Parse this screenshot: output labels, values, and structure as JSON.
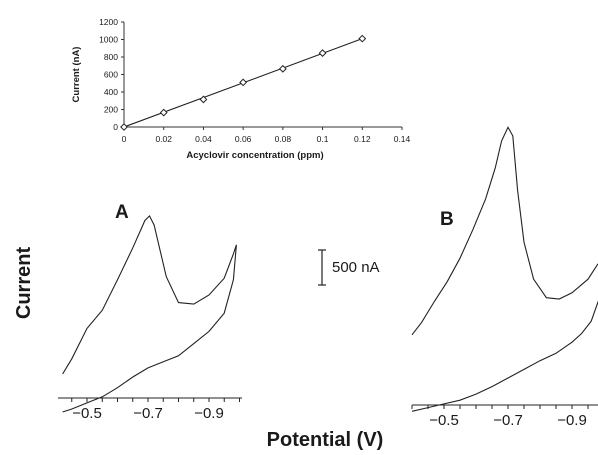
{
  "chart_data": [
    {
      "type": "line",
      "xlabel": "Acyclovir concentration (ppm)",
      "ylabel": "Current (nA)",
      "xlim": [
        0,
        0.14
      ],
      "ylim": [
        0,
        1200
      ],
      "x_ticks": [
        "0",
        "0.02",
        "0.04",
        "0.06",
        "0.08",
        "0.1",
        "0.12",
        "0.14"
      ],
      "y_ticks": [
        "0",
        "200",
        "400",
        "600",
        "800",
        "1000",
        "1200"
      ],
      "marker": "diamond-open",
      "x": [
        0,
        0.02,
        0.04,
        0.06,
        0.08,
        0.1,
        0.12
      ],
      "y": [
        0,
        165,
        315,
        510,
        665,
        845,
        1010
      ],
      "fit_line": {
        "x": [
          0,
          0.12
        ],
        "y": [
          0,
          1010
        ]
      }
    },
    {
      "type": "line",
      "panel": "A",
      "xlabel": "Potential (V)",
      "ylabel": "Current",
      "x_ticks": [
        "−0.5",
        "−0.7",
        "−0.9"
      ],
      "tick_values": [
        -0.5,
        -0.7,
        -0.9
      ],
      "peak": {
        "potential": -0.7,
        "height_nA": 1040
      },
      "forward_scan": [
        [
          -0.42,
          0
        ],
        [
          -0.45,
          100
        ],
        [
          -0.5,
          300
        ],
        [
          -0.55,
          420
        ],
        [
          -0.6,
          620
        ],
        [
          -0.65,
          830
        ],
        [
          -0.69,
          1010
        ],
        [
          -0.705,
          1040
        ],
        [
          -0.72,
          980
        ],
        [
          -0.76,
          640
        ],
        [
          -0.8,
          470
        ],
        [
          -0.85,
          460
        ],
        [
          -0.9,
          520
        ],
        [
          -0.95,
          630
        ],
        [
          -0.98,
          790
        ],
        [
          -0.99,
          850
        ]
      ],
      "reverse_scan": [
        [
          -0.99,
          850
        ],
        [
          -0.98,
          620
        ],
        [
          -0.95,
          400
        ],
        [
          -0.9,
          280
        ],
        [
          -0.85,
          200
        ],
        [
          -0.8,
          120
        ],
        [
          -0.75,
          80
        ],
        [
          -0.7,
          40
        ],
        [
          -0.65,
          -20
        ],
        [
          -0.6,
          -90
        ],
        [
          -0.55,
          -150
        ],
        [
          -0.5,
          -190
        ],
        [
          -0.45,
          -230
        ],
        [
          -0.42,
          -250
        ]
      ]
    },
    {
      "type": "line",
      "panel": "B",
      "xlabel": "Potential (V)",
      "ylabel": "Current",
      "x_ticks": [
        "−0.5",
        "−0.7",
        "−0.9"
      ],
      "tick_values": [
        -0.5,
        -0.7,
        -0.9
      ],
      "peak": {
        "potential": -0.7,
        "height_nA": 2020
      },
      "forward_scan": [
        [
          -0.4,
          350
        ],
        [
          -0.43,
          450
        ],
        [
          -0.47,
          620
        ],
        [
          -0.51,
          780
        ],
        [
          -0.55,
          970
        ],
        [
          -0.59,
          1200
        ],
        [
          -0.63,
          1450
        ],
        [
          -0.66,
          1700
        ],
        [
          -0.68,
          1920
        ],
        [
          -0.7,
          2030
        ],
        [
          -0.715,
          1960
        ],
        [
          -0.73,
          1520
        ],
        [
          -0.75,
          1100
        ],
        [
          -0.78,
          800
        ],
        [
          -0.82,
          650
        ],
        [
          -0.86,
          640
        ],
        [
          -0.9,
          690
        ],
        [
          -0.95,
          800
        ],
        [
          -0.98,
          920
        ],
        [
          -1.0,
          960
        ]
      ],
      "reverse_scan": [
        [
          -1.0,
          960
        ],
        [
          -0.99,
          680
        ],
        [
          -0.96,
          460
        ],
        [
          -0.93,
          360
        ],
        [
          -0.9,
          290
        ],
        [
          -0.85,
          200
        ],
        [
          -0.8,
          140
        ],
        [
          -0.75,
          70
        ],
        [
          -0.7,
          0
        ],
        [
          -0.65,
          -70
        ],
        [
          -0.6,
          -130
        ],
        [
          -0.55,
          -180
        ],
        [
          -0.5,
          -210
        ],
        [
          -0.45,
          -240
        ],
        [
          -0.4,
          -270
        ]
      ]
    }
  ],
  "scale_bar": {
    "label": "500 nA",
    "value_nA": 500
  },
  "shared_ylabel": "Current",
  "shared_xlabel": "Potential (V)"
}
